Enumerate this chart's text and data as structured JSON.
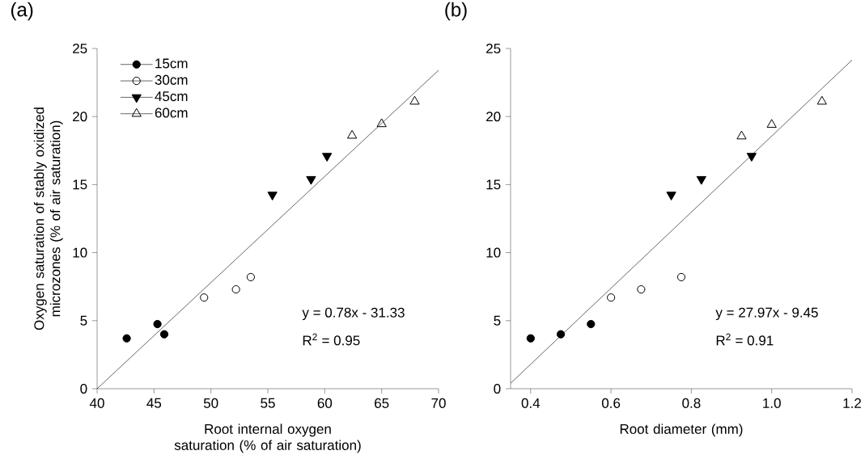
{
  "chart_data": [
    {
      "type": "scatter",
      "title": "(a)",
      "xlabel": "Root internal oxygen saturation (% of air saturation)",
      "ylabel": "Oxygen saturation of stably oxidized microzones (% of air saturation)",
      "xlim": [
        40,
        70
      ],
      "ylim": [
        0,
        25
      ],
      "xticks": [
        40,
        45,
        50,
        55,
        60,
        65,
        70
      ],
      "yticks": [
        0,
        5,
        10,
        15,
        20,
        25
      ],
      "legend": "top left",
      "series": [
        {
          "name": "15cm",
          "color": "#000000",
          "marker": "circle",
          "x": [
            42.6,
            45.3,
            45.9
          ],
          "values": [
            3.7,
            4.75,
            4.0
          ]
        },
        {
          "name": "30cm",
          "color": "#000000",
          "marker": "circle-open",
          "x": [
            49.4,
            52.2,
            53.5
          ],
          "values": [
            6.7,
            7.3,
            8.2
          ]
        },
        {
          "name": "45cm",
          "color": "#000000",
          "marker": "triangle-down",
          "x": [
            55.4,
            58.8,
            60.2
          ],
          "values": [
            14.25,
            15.4,
            17.1
          ]
        },
        {
          "name": "60cm",
          "color": "#000000",
          "marker": "triangle-open",
          "x": [
            62.4,
            65.0,
            67.9
          ],
          "values": [
            18.6,
            19.45,
            21.1
          ]
        },
        {
          "type": "line",
          "color": "#000000",
          "marker": "none",
          "line_style": "solid",
          "x": [
            40,
            70
          ],
          "values": [
            0,
            23.4
          ]
        }
      ],
      "annotations": [
        "y = 0.78x - 31.33",
        "R$^{2}$ = 0.95"
      ]
    },
    {
      "type": "scatter",
      "title": "(b)",
      "xlabel": "Root diameter (mm)",
      "xlim": [
        0.35,
        1.2
      ],
      "ylim": [
        0,
        25
      ],
      "xticks": [
        0.4,
        0.6,
        0.8,
        {
          "value": 1.0,
          "label": "1.0"
        },
        1.2
      ],
      "yticks": [
        0,
        5,
        10,
        15,
        20,
        25
      ],
      "series": [
        {
          "color": "#000000",
          "marker": "circle",
          "x": [
            0.4,
            0.475,
            0.55
          ],
          "values": [
            3.7,
            4.0,
            4.75
          ]
        },
        {
          "color": "#000000",
          "marker": "circle-open",
          "x": [
            0.6,
            0.675,
            0.775
          ],
          "values": [
            6.7,
            7.3,
            8.2
          ]
        },
        {
          "color": "#000000",
          "marker": "triangle-down",
          "x": [
            0.75,
            0.825,
            0.95
          ],
          "values": [
            14.25,
            15.4,
            17.1
          ]
        },
        {
          "color": "#000000",
          "marker": "triangle-open",
          "x": [
            0.925,
            1.0,
            1.125
          ],
          "values": [
            18.55,
            19.4,
            21.1
          ]
        },
        {
          "type": "line",
          "color": "#000000",
          "marker": "none",
          "line_style": "solid",
          "x": [
            0.35,
            1.2
          ],
          "values": [
            0.4,
            24.15
          ]
        }
      ],
      "annotations": [
        "y = 27.97x - 9.45",
        "R$^{2}$ = 0.91"
      ]
    }
  ]
}
